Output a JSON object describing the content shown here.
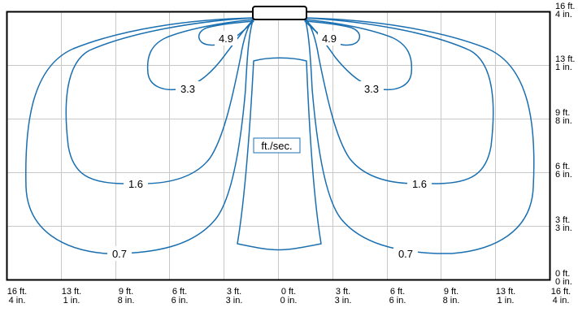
{
  "colors": {
    "contour": "#1a6fb0",
    "grid": "#c8c8c8",
    "frame": "#000000",
    "background": "#ffffff"
  },
  "units_label": "ft./sec.",
  "contour_labels": {
    "c49": "4.9",
    "c33": "3.3",
    "c16": "1.6",
    "c07": "0.7"
  },
  "x_axis": [
    [
      "16 ft.",
      "4 in."
    ],
    [
      "13 ft.",
      "1 in."
    ],
    [
      "9 ft.",
      "8 in."
    ],
    [
      "6 ft.",
      "6 in."
    ],
    [
      "3 ft.",
      "3 in."
    ],
    [
      "0 ft.",
      "0 in."
    ],
    [
      "3 ft.",
      "3 in."
    ],
    [
      "6 ft.",
      "6 in."
    ],
    [
      "9 ft.",
      "8 in."
    ],
    [
      "13 ft.",
      "1 in."
    ],
    [
      "16 ft.",
      "4 in."
    ]
  ],
  "y_axis": [
    [
      "16 ft.",
      "4 in."
    ],
    [
      "13 ft.",
      "1 in."
    ],
    [
      "9 ft.",
      "8 in."
    ],
    [
      "6 ft.",
      "6 in."
    ],
    [
      "3 ft.",
      "3 in."
    ],
    [
      "0 ft.",
      "0 in."
    ]
  ]
}
